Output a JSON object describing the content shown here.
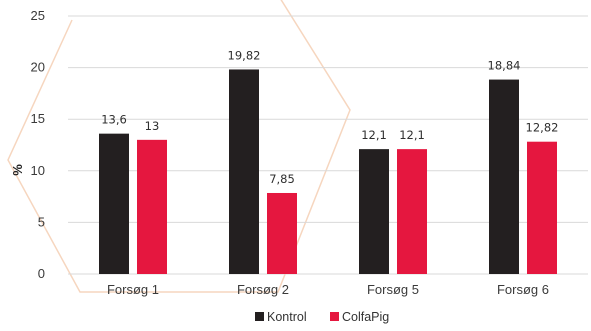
{
  "chart_data": {
    "type": "bar",
    "categories": [
      "Forsøg 1",
      "Forsøg 2",
      "Forsøg 5",
      "Forsøg 6"
    ],
    "series": [
      {
        "name": "Kontrol",
        "values": [
          13.6,
          19.82,
          12.1,
          18.84
        ],
        "labels": [
          "13,6",
          "19,82",
          "12,1",
          "18,84"
        ],
        "color": "#231f20"
      },
      {
        "name": "ColfaPig",
        "values": [
          13,
          7.85,
          12.1,
          12.82
        ],
        "labels": [
          "13",
          "7,85",
          "12,1",
          "12,82"
        ],
        "color": "#e5173f"
      }
    ],
    "ylabel": "%",
    "ylim": [
      0,
      25
    ],
    "yticks": [
      0,
      5,
      10,
      15,
      20,
      25
    ],
    "grid": true,
    "legend": "bottom-center",
    "colors": {
      "grid": "#d9d9d9",
      "watermark": "#f6d6bf"
    }
  }
}
